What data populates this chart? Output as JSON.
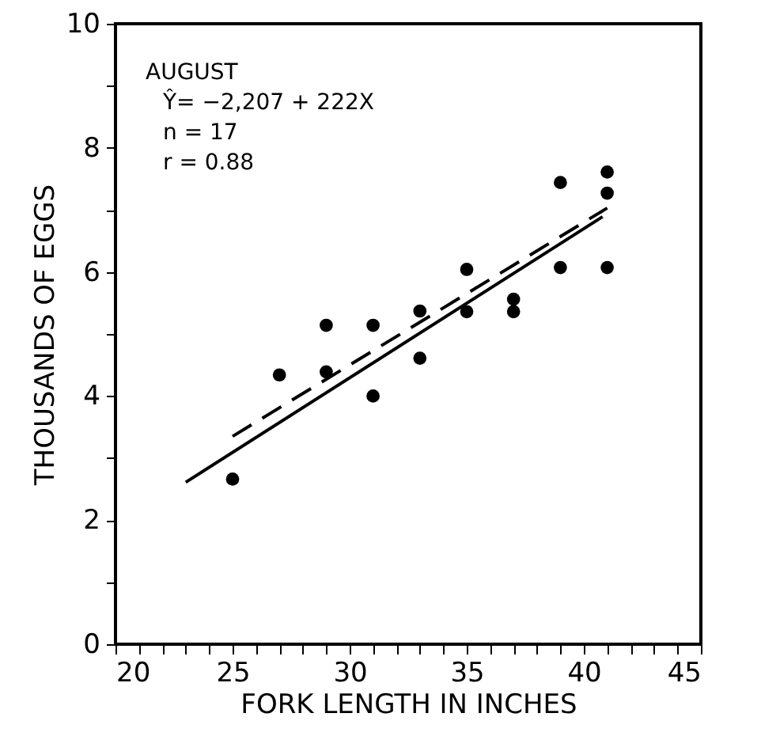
{
  "chart_data": {
    "type": "scatter",
    "xlabel": "FORK LENGTH IN INCHES",
    "ylabel": "THOUSANDS OF EGGS",
    "annotations": [
      "AUGUST",
      "Ŷ= −2,207 + 222X",
      "n = 17",
      "r = 0.88"
    ],
    "xlim": [
      20,
      45
    ],
    "ylim": [
      0,
      10
    ],
    "xticks": [
      20,
      {
        "value": 21,
        "label": null
      },
      {
        "value": 22,
        "label": null
      },
      {
        "value": 23,
        "label": null
      },
      {
        "value": 24,
        "label": null
      },
      25,
      {
        "value": 26,
        "label": null
      },
      {
        "value": 27,
        "label": null
      },
      {
        "value": 28,
        "label": null
      },
      {
        "value": 29,
        "label": null
      },
      30,
      {
        "value": 31,
        "label": null
      },
      {
        "value": 32,
        "label": null
      },
      {
        "value": 33,
        "label": null
      },
      {
        "value": 34,
        "label": null
      },
      35,
      {
        "value": 36,
        "label": null
      },
      {
        "value": 37,
        "label": null
      },
      {
        "value": 38,
        "label": null
      },
      {
        "value": 39,
        "label": null
      },
      40,
      {
        "value": 41,
        "label": null
      },
      {
        "value": 42,
        "label": null
      },
      {
        "value": 43,
        "label": null
      },
      {
        "value": 44,
        "label": null
      },
      45
    ],
    "yticks": [
      0,
      {
        "value": 1,
        "label": null
      },
      2,
      {
        "value": 3,
        "label": null
      },
      4,
      {
        "value": 5,
        "label": null
      },
      6,
      {
        "value": 7,
        "label": null
      },
      8,
      {
        "value": 9,
        "label": null
      },
      10
    ],
    "grid": false,
    "series": [
      {
        "color": "#000000",
        "marker": "circle",
        "x": [
          25,
          27,
          29,
          29,
          31,
          31,
          33,
          33,
          35,
          35,
          37,
          37,
          39,
          39,
          41,
          41,
          41
        ],
        "values": [
          2.66,
          4.34,
          5.14,
          4.39,
          5.14,
          4.0,
          5.37,
          4.61,
          6.04,
          5.36,
          5.56,
          5.36,
          7.44,
          6.07,
          7.61,
          7.27,
          6.07
        ]
      },
      {
        "type": "line",
        "color": "#000000",
        "line_style": "solid",
        "x": [
          23,
          40.8
        ],
        "values": [
          2.61,
          6.89
        ]
      },
      {
        "type": "line",
        "color": "#000000",
        "line_style": "dashed",
        "x": [
          25,
          41
        ],
        "values": [
          3.35,
          7.03
        ]
      }
    ]
  }
}
